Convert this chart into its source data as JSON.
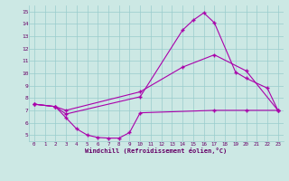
{
  "xlabel": "Windchill (Refroidissement éolien,°C)",
  "background_color": "#cce8e4",
  "line_color": "#aa00aa",
  "grid_color": "#99cccc",
  "xlim": [
    -0.5,
    23.5
  ],
  "ylim": [
    4.5,
    15.5
  ],
  "xticks": [
    0,
    1,
    2,
    3,
    4,
    5,
    6,
    7,
    8,
    9,
    10,
    11,
    12,
    13,
    14,
    15,
    16,
    17,
    18,
    19,
    20,
    21,
    22,
    23
  ],
  "yticks": [
    5,
    6,
    7,
    8,
    9,
    10,
    11,
    12,
    13,
    14,
    15
  ],
  "line1_x": [
    0,
    2,
    3,
    10,
    14,
    15,
    16,
    17,
    19,
    20,
    22,
    23
  ],
  "line1_y": [
    7.5,
    7.3,
    6.7,
    8.1,
    13.5,
    14.3,
    14.9,
    14.1,
    10.1,
    9.6,
    8.8,
    7.0
  ],
  "line2_x": [
    0,
    2,
    3,
    10,
    14,
    17,
    20,
    23
  ],
  "line2_y": [
    7.5,
    7.3,
    7.0,
    8.5,
    10.5,
    11.5,
    10.2,
    7.0
  ],
  "line3_x": [
    0,
    2,
    3,
    4,
    5,
    6,
    7,
    8,
    9,
    10,
    17,
    20,
    23
  ],
  "line3_y": [
    7.5,
    7.3,
    6.4,
    5.5,
    5.0,
    4.8,
    4.75,
    4.75,
    5.2,
    6.8,
    7.0,
    7.0,
    7.0
  ]
}
